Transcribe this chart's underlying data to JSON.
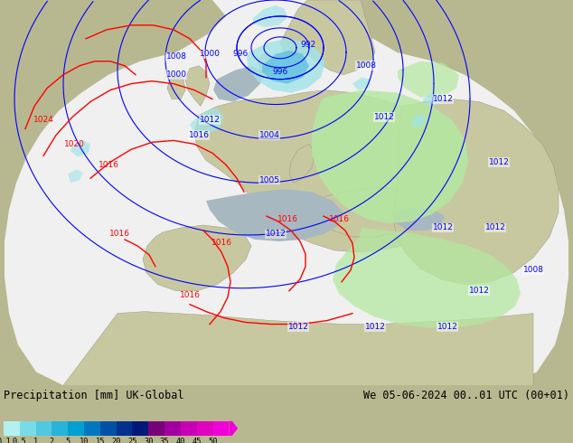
{
  "title_left": "Precipitation [mm] UK-Global",
  "title_right": "We 05-06-2024 00..01 UTC (00+01)",
  "colorbar_labels": [
    "0.1",
    "0.5",
    "1",
    "2",
    "5",
    "10",
    "15",
    "20",
    "25",
    "30",
    "35",
    "40",
    "45",
    "50"
  ],
  "colorbar_colors": [
    "#b4f0f0",
    "#78dce8",
    "#50c8e0",
    "#28b4d8",
    "#00a0d0",
    "#0078c0",
    "#0050a8",
    "#003090",
    "#001878",
    "#780078",
    "#a000a0",
    "#c800b4",
    "#e000c0",
    "#f000d8"
  ],
  "bg_color": "#b8b890",
  "domain_color": "#f0f0f0",
  "land_color": "#c8c8a0",
  "sea_color": "#a8b8c0",
  "green_precip": "#b4e8a0",
  "cyan_precip": "#a0e4e8",
  "blue_precip": "#60c0e0",
  "dark_blue_precip": "#4090c8",
  "font_family": "monospace",
  "fig_w": 6.34,
  "fig_h": 4.9,
  "dpi": 100
}
